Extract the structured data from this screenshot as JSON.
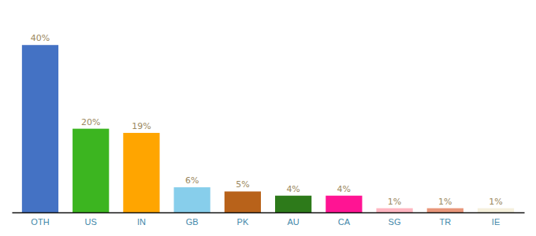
{
  "chart_data": {
    "type": "bar",
    "categories": [
      "OTH",
      "US",
      "IN",
      "GB",
      "PK",
      "AU",
      "CA",
      "SG",
      "TR",
      "IE"
    ],
    "values": [
      40,
      20,
      19,
      6,
      5,
      4,
      4,
      1,
      1,
      1
    ],
    "value_labels": [
      "40%",
      "20%",
      "19%",
      "6%",
      "5%",
      "4%",
      "4%",
      "1%",
      "1%",
      "1%"
    ],
    "colors": [
      "#4472C4",
      "#3CB520",
      "#FFA500",
      "#87CEEB",
      "#B8621A",
      "#2D7A1A",
      "#FF1493",
      "#FFB6C1",
      "#E8967A",
      "#F5F0DC"
    ],
    "ylim": [
      0,
      47
    ],
    "data_labels": true,
    "tick_labels": "x",
    "grid": false
  }
}
